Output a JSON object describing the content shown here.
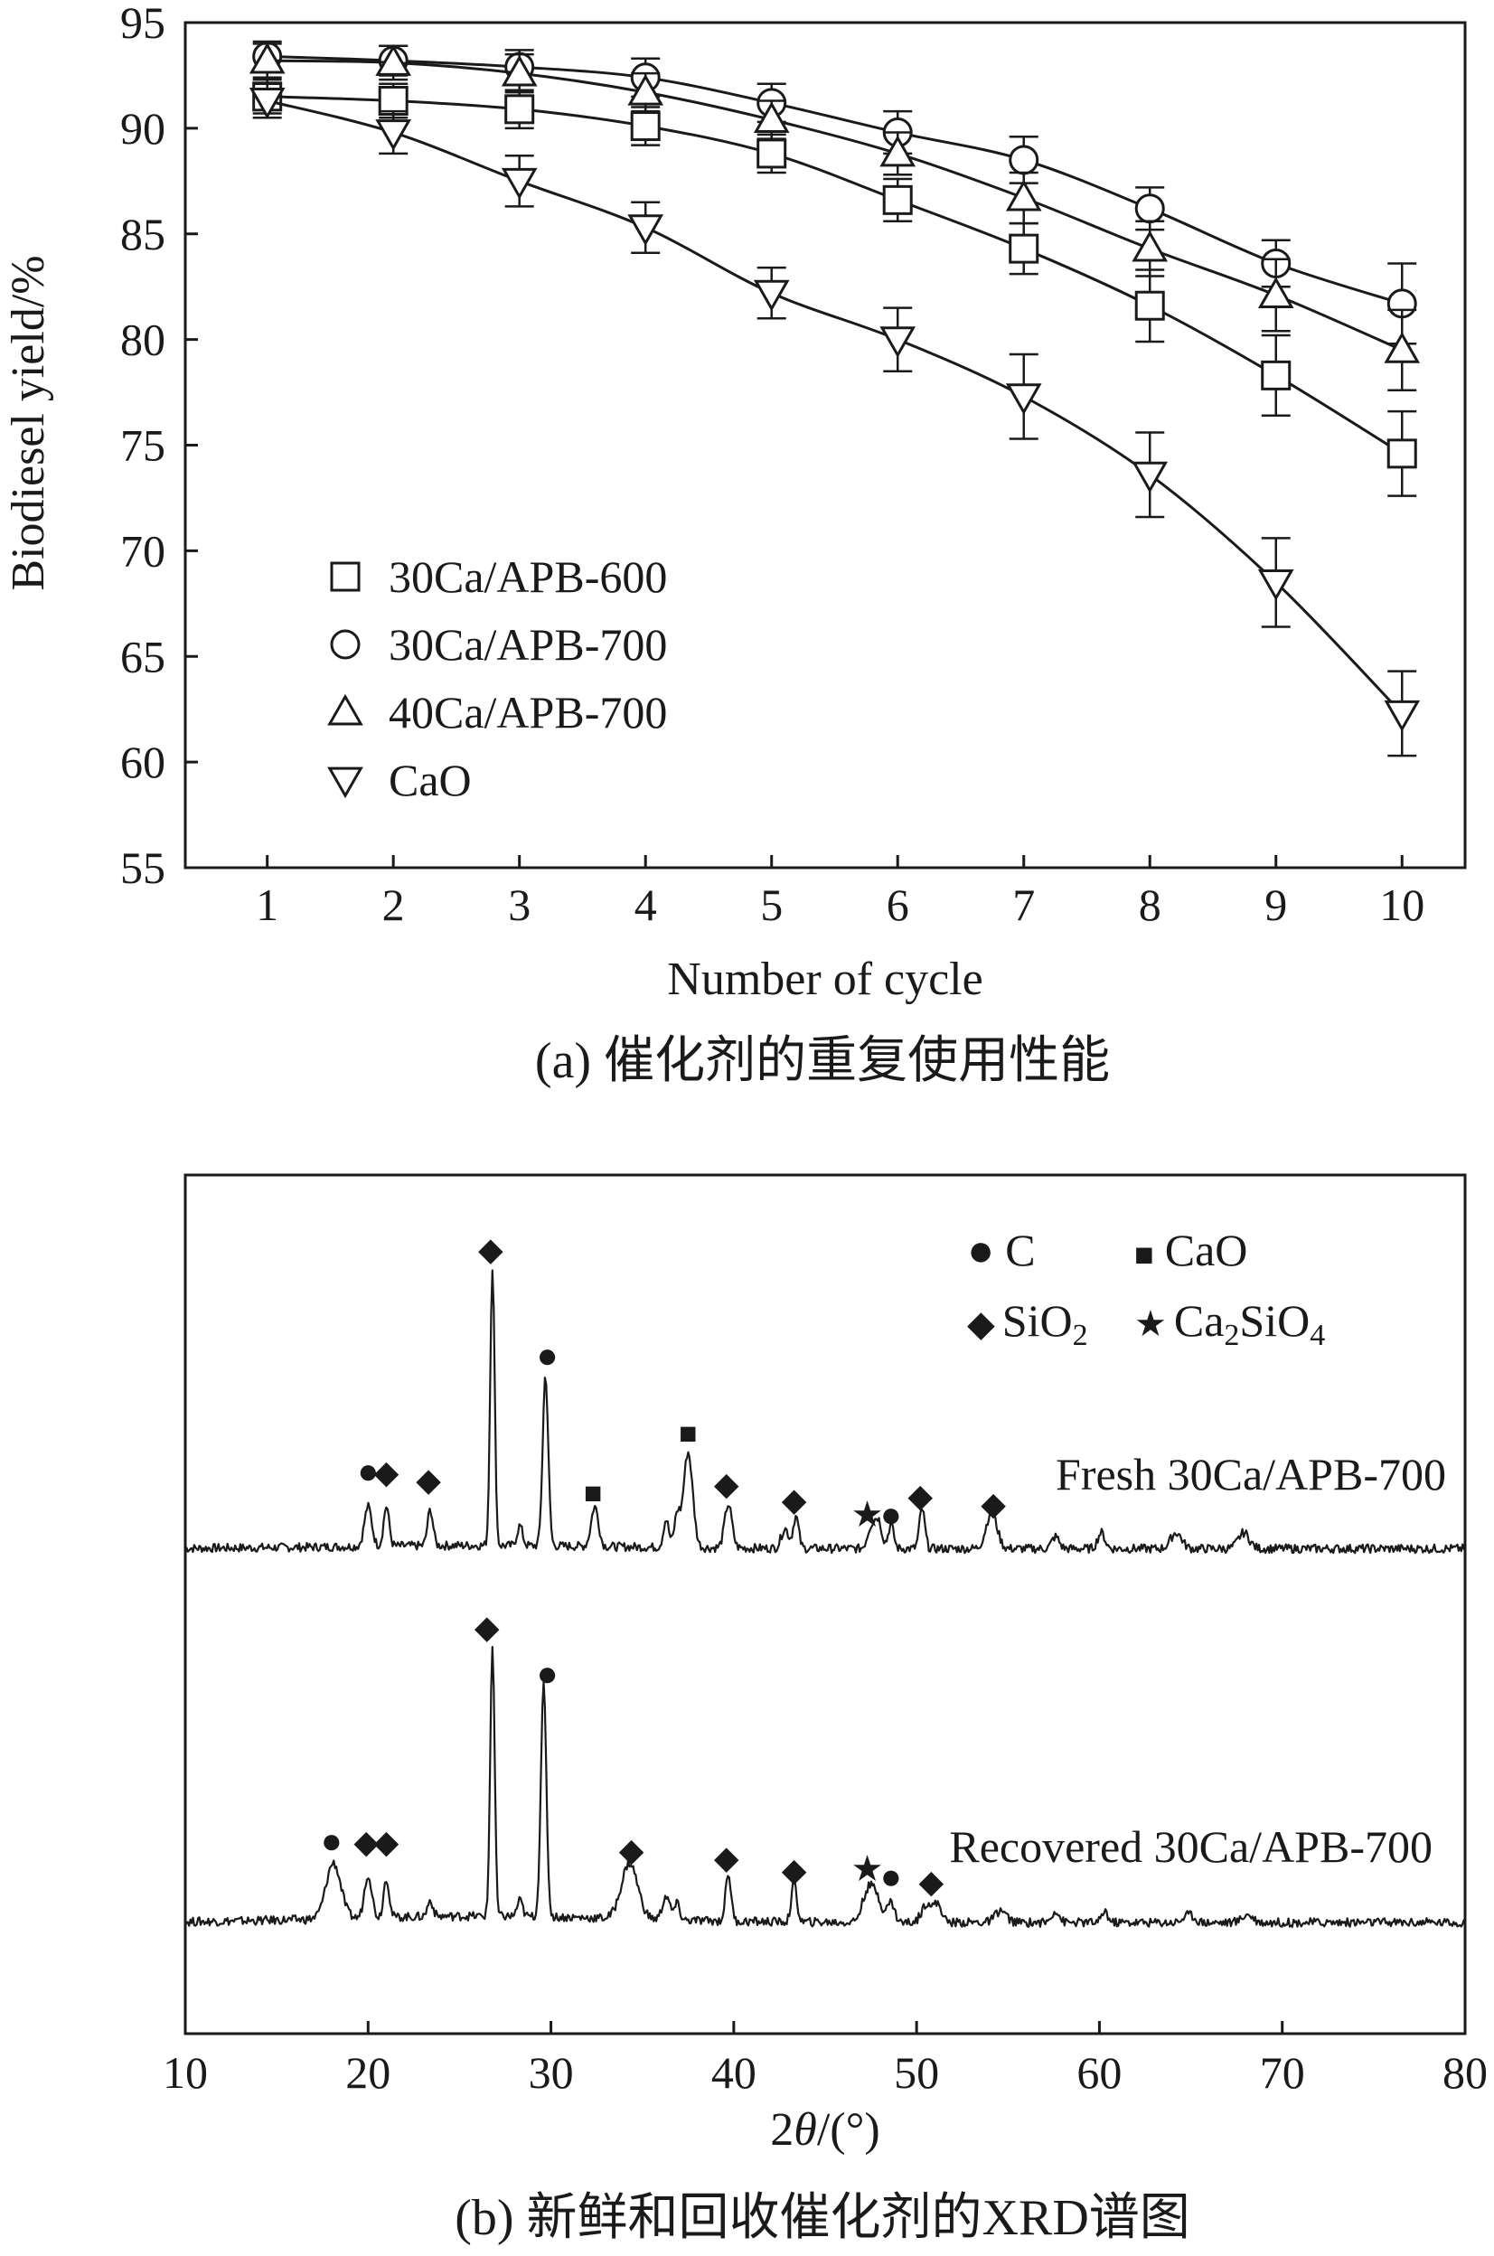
{
  "chart_data": [
    {
      "type": "line",
      "caption": "(a) 催化剂的重复使用性能",
      "xlabel": "Number of cycle",
      "ylabel": "Biodiesel yield/%",
      "xlim": [
        0.35,
        10.5
      ],
      "ylim": [
        55,
        95
      ],
      "x_ticks": [
        1,
        2,
        3,
        4,
        5,
        6,
        7,
        8,
        9,
        10
      ],
      "y_ticks": [
        55,
        60,
        65,
        70,
        75,
        80,
        85,
        90,
        95
      ],
      "x": [
        1,
        2,
        3,
        4,
        5,
        6,
        7,
        8,
        9,
        10
      ],
      "series": [
        {
          "name": "30Ca/APB-600",
          "marker": "square",
          "values": [
            91.5,
            91.3,
            90.9,
            90.1,
            88.8,
            86.6,
            84.3,
            81.6,
            78.3,
            74.6
          ],
          "errors": [
            0.8,
            0.8,
            0.9,
            0.9,
            0.9,
            1.0,
            1.2,
            1.7,
            1.9,
            2.0
          ]
        },
        {
          "name": "30Ca/APB-700",
          "marker": "circle",
          "values": [
            93.4,
            93.2,
            92.9,
            92.4,
            91.2,
            89.8,
            88.5,
            86.2,
            83.6,
            81.7
          ],
          "errors": [
            0.7,
            0.7,
            0.8,
            0.9,
            0.9,
            1.0,
            1.1,
            1.0,
            1.1,
            1.9
          ]
        },
        {
          "name": "40Ca/APB-700",
          "marker": "triangle-up",
          "values": [
            93.2,
            93.1,
            92.6,
            91.7,
            90.4,
            88.8,
            86.7,
            84.3,
            82.1,
            79.5
          ],
          "errors": [
            0.8,
            0.8,
            0.9,
            0.9,
            0.9,
            1.0,
            1.2,
            1.3,
            1.7,
            1.9
          ]
        },
        {
          "name": "CaO",
          "marker": "triangle-down",
          "values": [
            91.3,
            89.8,
            87.5,
            85.3,
            82.2,
            80.0,
            77.3,
            73.6,
            68.5,
            62.3
          ],
          "errors": [
            0.8,
            1.0,
            1.2,
            1.2,
            1.2,
            1.5,
            2.0,
            2.0,
            2.1,
            2.0
          ]
        }
      ]
    },
    {
      "type": "line",
      "caption": "(b) 新鲜和回收催化剂的XRD谱图",
      "xlabel_prefix": "2",
      "xlabel_theta": "θ",
      "xlabel_suffix": "/(°)",
      "xlim": [
        10,
        80
      ],
      "x_ticks": [
        10,
        20,
        30,
        40,
        50,
        60,
        70,
        80
      ],
      "legend": [
        {
          "symbol": "●",
          "label": "C"
        },
        {
          "symbol": "■",
          "label": "CaO"
        },
        {
          "symbol": "◆",
          "label": "SiO",
          "sub": "2"
        },
        {
          "symbol": "★",
          "label": "Ca",
          "sub": "2",
          "label2": "SiO",
          "sub2": "4"
        }
      ],
      "series": [
        {
          "name": "Fresh 30Ca/APB-700",
          "base": 0.1,
          "peaks": [
            [
              20.0,
              1.0,
              0.2
            ],
            [
              21.0,
              1.0,
              0.15
            ],
            [
              23.4,
              0.9,
              0.15
            ],
            [
              26.8,
              7.0,
              0.12
            ],
            [
              28.3,
              0.5,
              0.15
            ],
            [
              29.7,
              4.3,
              0.15
            ],
            [
              32.4,
              1.0,
              0.2
            ],
            [
              36.3,
              0.7,
              0.15
            ],
            [
              36.9,
              0.8,
              0.15
            ],
            [
              37.5,
              2.4,
              0.25
            ],
            [
              39.7,
              1.1,
              0.2
            ],
            [
              42.8,
              0.5,
              0.2
            ],
            [
              43.4,
              0.8,
              0.15
            ],
            [
              47.5,
              0.5,
              0.2
            ],
            [
              47.9,
              0.7,
              0.2
            ],
            [
              48.6,
              0.6,
              0.15
            ],
            [
              50.3,
              1.0,
              0.15
            ],
            [
              54.1,
              0.9,
              0.3
            ],
            [
              57.6,
              0.3,
              0.2
            ],
            [
              60.1,
              0.4,
              0.2
            ],
            [
              64.2,
              0.4,
              0.3
            ],
            [
              67.9,
              0.4,
              0.3
            ]
          ],
          "markers": [
            {
              "x": 20.0,
              "y": 1.8,
              "type": "C"
            },
            {
              "x": 21.0,
              "y": 1.8,
              "type": "SiO2"
            },
            {
              "x": 23.3,
              "y": 1.6,
              "type": "SiO2"
            },
            {
              "x": 26.7,
              "y": 7.4,
              "type": "SiO2"
            },
            {
              "x": 29.8,
              "y": 4.7,
              "type": "C"
            },
            {
              "x": 32.3,
              "y": 1.3,
              "type": "CaO"
            },
            {
              "x": 37.5,
              "y": 2.8,
              "type": "CaO"
            },
            {
              "x": 39.6,
              "y": 1.5,
              "type": "SiO2"
            },
            {
              "x": 43.3,
              "y": 1.1,
              "type": "SiO2"
            },
            {
              "x": 47.3,
              "y": 0.7,
              "type": "Ca2SiO4"
            },
            {
              "x": 48.6,
              "y": 0.7,
              "type": "C"
            },
            {
              "x": 50.2,
              "y": 1.2,
              "type": "SiO2"
            },
            {
              "x": 54.2,
              "y": 1.0,
              "type": "SiO2"
            }
          ]
        },
        {
          "name": "Recovered 30Ca/APB-700",
          "base": 0.2,
          "peaks": [
            [
              18.1,
              1.4,
              0.4
            ],
            [
              20.0,
              1.1,
              0.2
            ],
            [
              21.0,
              1.0,
              0.15
            ],
            [
              23.4,
              0.4,
              0.15
            ],
            [
              26.8,
              6.8,
              0.12
            ],
            [
              28.3,
              0.4,
              0.15
            ],
            [
              29.6,
              5.8,
              0.15
            ],
            [
              34.3,
              1.4,
              0.45
            ],
            [
              36.3,
              0.6,
              0.2
            ],
            [
              36.9,
              0.4,
              0.15
            ],
            [
              39.7,
              1.2,
              0.15
            ],
            [
              43.3,
              1.0,
              0.15
            ],
            [
              47.3,
              0.7,
              0.3
            ],
            [
              47.8,
              0.6,
              0.3
            ],
            [
              48.6,
              0.5,
              0.2
            ],
            [
              50.6,
              0.5,
              0.3
            ],
            [
              51.2,
              0.4,
              0.2
            ],
            [
              54.6,
              0.3,
              0.3
            ],
            [
              57.6,
              0.3,
              0.2
            ],
            [
              60.3,
              0.3,
              0.15
            ],
            [
              64.9,
              0.2,
              0.3
            ],
            [
              68.1,
              0.2,
              0.3
            ]
          ],
          "markers": [
            {
              "x": 18.0,
              "y": 2.0,
              "type": "C"
            },
            {
              "x": 19.9,
              "y": 2.0,
              "type": "SiO2"
            },
            {
              "x": 21.0,
              "y": 2.0,
              "type": "SiO2"
            },
            {
              "x": 26.5,
              "y": 7.4,
              "type": "SiO2"
            },
            {
              "x": 29.8,
              "y": 6.2,
              "type": "C"
            },
            {
              "x": 34.4,
              "y": 1.8,
              "type": "SiO2"
            },
            {
              "x": 39.6,
              "y": 1.6,
              "type": "SiO2"
            },
            {
              "x": 43.3,
              "y": 1.3,
              "type": "SiO2"
            },
            {
              "x": 47.3,
              "y": 1.3,
              "type": "Ca2SiO4"
            },
            {
              "x": 48.6,
              "y": 1.1,
              "type": "C"
            },
            {
              "x": 50.8,
              "y": 1.0,
              "type": "SiO2"
            }
          ]
        }
      ]
    }
  ]
}
